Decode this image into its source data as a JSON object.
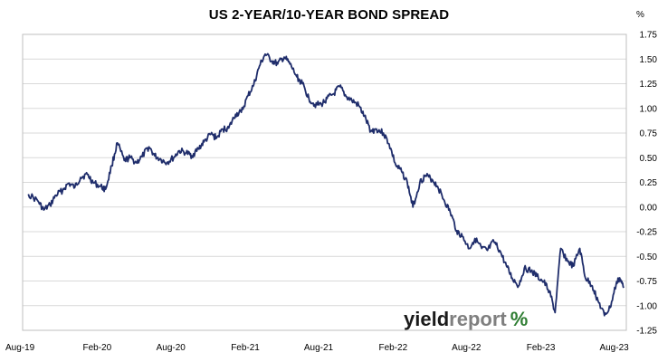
{
  "chart_data": {
    "type": "line",
    "title": "US 2-YEAR/10-YEAR BOND SPREAD",
    "ylabel": "%",
    "xlabel": "",
    "ylim": [
      -1.25,
      1.75
    ],
    "yticks": [
      "1.75",
      "1.50",
      "1.25",
      "1.00",
      "0.75",
      "0.50",
      "0.25",
      "0.00",
      "-0.25",
      "-0.50",
      "-0.75",
      "-1.00",
      "-1.25"
    ],
    "xticks": [
      "Aug-19",
      "Feb-20",
      "Aug-20",
      "Feb-21",
      "Aug-21",
      "Feb-22",
      "Aug-22",
      "Feb-23",
      "Aug-23"
    ],
    "grid": true,
    "legend": "none",
    "line_color": "#1f2d6b",
    "series": [
      {
        "points": [
          [
            "2019-08",
            0.13
          ],
          [
            "2019-09",
            0.06
          ],
          [
            "2019-09",
            -0.03
          ],
          [
            "2019-10",
            0.02
          ],
          [
            "2019-10",
            0.12
          ],
          [
            "2019-11",
            0.17
          ],
          [
            "2019-11",
            0.24
          ],
          [
            "2019-12",
            0.2
          ],
          [
            "2019-12",
            0.3
          ],
          [
            "2020-01",
            0.33
          ],
          [
            "2020-01",
            0.25
          ],
          [
            "2020-02",
            0.21
          ],
          [
            "2020-02",
            0.18
          ],
          [
            "2020-03",
            0.42
          ],
          [
            "2020-03",
            0.65
          ],
          [
            "2020-04",
            0.47
          ],
          [
            "2020-04",
            0.5
          ],
          [
            "2020-05",
            0.45
          ],
          [
            "2020-05",
            0.51
          ],
          [
            "2020-06",
            0.61
          ],
          [
            "2020-06",
            0.52
          ],
          [
            "2020-07",
            0.48
          ],
          [
            "2020-07",
            0.45
          ],
          [
            "2020-08",
            0.5
          ],
          [
            "2020-08",
            0.57
          ],
          [
            "2020-09",
            0.55
          ],
          [
            "2020-09",
            0.52
          ],
          [
            "2020-10",
            0.59
          ],
          [
            "2020-10",
            0.66
          ],
          [
            "2020-11",
            0.74
          ],
          [
            "2020-11",
            0.7
          ],
          [
            "2020-12",
            0.79
          ],
          [
            "2020-12",
            0.8
          ],
          [
            "2021-01",
            0.94
          ],
          [
            "2021-01",
            0.96
          ],
          [
            "2021-02",
            1.13
          ],
          [
            "2021-02",
            1.24
          ],
          [
            "2021-03",
            1.43
          ],
          [
            "2021-03",
            1.55
          ],
          [
            "2021-04",
            1.48
          ],
          [
            "2021-04",
            1.45
          ],
          [
            "2021-05",
            1.52
          ],
          [
            "2021-05",
            1.45
          ],
          [
            "2021-06",
            1.32
          ],
          [
            "2021-06",
            1.25
          ],
          [
            "2021-07",
            1.1
          ],
          [
            "2021-07",
            1.04
          ],
          [
            "2021-08",
            1.04
          ],
          [
            "2021-08",
            1.1
          ],
          [
            "2021-09",
            1.15
          ],
          [
            "2021-09",
            1.22
          ],
          [
            "2021-10",
            1.12
          ],
          [
            "2021-10",
            1.08
          ],
          [
            "2021-11",
            1.03
          ],
          [
            "2021-11",
            0.92
          ],
          [
            "2021-12",
            0.77
          ],
          [
            "2021-12",
            0.79
          ],
          [
            "2022-01",
            0.75
          ],
          [
            "2022-01",
            0.64
          ],
          [
            "2022-02",
            0.42
          ],
          [
            "2022-02",
            0.36
          ],
          [
            "2022-03",
            0.25
          ],
          [
            "2022-03",
            0.0
          ],
          [
            "2022-04",
            0.25
          ],
          [
            "2022-04",
            0.32
          ],
          [
            "2022-05",
            0.28
          ],
          [
            "2022-05",
            0.21
          ],
          [
            "2022-06",
            0.06
          ],
          [
            "2022-06",
            -0.05
          ],
          [
            "2022-07",
            -0.24
          ],
          [
            "2022-07",
            -0.3
          ],
          [
            "2022-08",
            -0.42
          ],
          [
            "2022-08",
            -0.32
          ],
          [
            "2022-09",
            -0.42
          ],
          [
            "2022-09",
            -0.44
          ],
          [
            "2022-10",
            -0.35
          ],
          [
            "2022-10",
            -0.44
          ],
          [
            "2022-11",
            -0.6
          ],
          [
            "2022-11",
            -0.72
          ],
          [
            "2022-12",
            -0.8
          ],
          [
            "2022-12",
            -0.62
          ],
          [
            "2023-01",
            -0.65
          ],
          [
            "2023-01",
            -0.7
          ],
          [
            "2023-02",
            -0.76
          ],
          [
            "2023-02",
            -0.85
          ],
          [
            "2023-03",
            -1.07
          ],
          [
            "2023-03",
            -0.42
          ],
          [
            "2023-04",
            -0.55
          ],
          [
            "2023-04",
            -0.6
          ],
          [
            "2023-05",
            -0.42
          ],
          [
            "2023-05",
            -0.72
          ],
          [
            "2023-06",
            -0.8
          ],
          [
            "2023-06",
            -0.95
          ],
          [
            "2023-07",
            -1.1
          ],
          [
            "2023-07",
            -1.02
          ],
          [
            "2023-08",
            -0.78
          ],
          [
            "2023-08",
            -0.72
          ],
          [
            "2023-08",
            -0.82
          ]
        ]
      }
    ]
  },
  "watermark": {
    "part1": "yield",
    "part2": "report",
    "symbol": "%",
    "color_dark": "#1a1a1a",
    "color_grey": "#7f7f7f",
    "color_green": "#2e7d32",
    "color_red": "#c62828"
  }
}
